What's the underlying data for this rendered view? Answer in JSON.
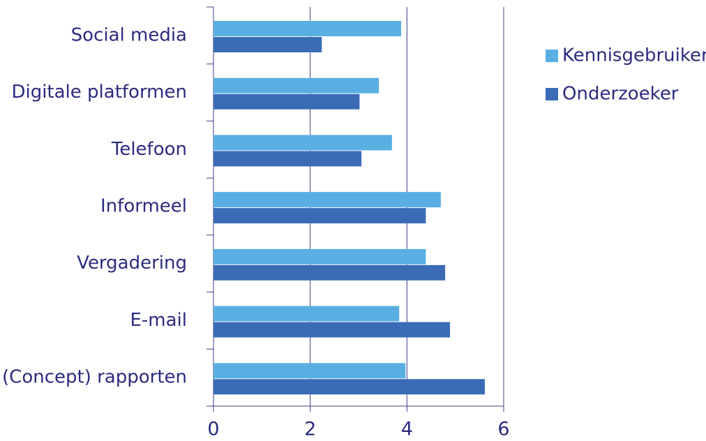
{
  "chart_data": {
    "type": "hbar",
    "categories": [
      "Social media",
      "Digitale platformen",
      "Telefoon",
      "Informeel",
      "Vergadering",
      "E-mail",
      "(Concept) rapporten"
    ],
    "series": [
      {
        "name": "Kennisgebruiker",
        "color": "#5aafe2",
        "values": [
          3.88,
          3.42,
          3.69,
          4.7,
          4.39,
          3.84,
          3.97
        ]
      },
      {
        "name": "Onderzoeker",
        "color": "#3a6cb6",
        "values": [
          2.24,
          3.02,
          3.06,
          4.39,
          4.79,
          4.89,
          5.61
        ]
      }
    ],
    "xlim": [
      0,
      6
    ],
    "xticks": [
      0,
      2,
      4,
      6
    ],
    "grid": true,
    "legend": "right"
  }
}
